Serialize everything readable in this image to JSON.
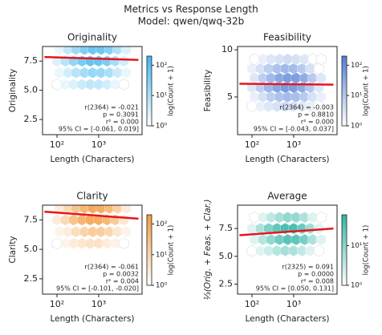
{
  "title": "Metrics vs Response Length",
  "subtitle": "Model: qwen/qwq-32b",
  "chart_data": [
    {
      "type": "hexbin",
      "title": "Originality",
      "xlabel": "Length (Characters)",
      "ylabel": "Originality",
      "colorbar_label": "log(Count + 1)",
      "color": "#3fb6ee",
      "fit_color": "#e8141c",
      "log_x": true,
      "xlim": [
        45,
        11000
      ],
      "xticks": [
        {
          "value": 100,
          "label": "10²"
        },
        {
          "value": 1000,
          "label": "10³"
        }
      ],
      "ylim": [
        1.2,
        8.75
      ],
      "yticks": [
        2.5,
        {
          "value": 5,
          "label": "5.0"
        },
        7.5
      ],
      "clim": [
        1,
        200
      ],
      "cticks": [
        {
          "value": 1,
          "label": "10⁰"
        },
        {
          "value": 10,
          "label": "10¹"
        },
        {
          "value": 100,
          "label": "10²"
        }
      ],
      "bin_x": [
        100,
        160,
        250,
        400,
        630,
        1000,
        1600,
        2500,
        4000
      ],
      "bin_y": [
        5.5,
        6.5,
        7.5,
        8.5
      ],
      "counts": [
        [
          0,
          1,
          2,
          4,
          6,
          5,
          3,
          1,
          0
        ],
        [
          1,
          3,
          8,
          15,
          22,
          20,
          12,
          4,
          1
        ],
        [
          2,
          8,
          25,
          60,
          110,
          100,
          55,
          15,
          3
        ],
        [
          1,
          5,
          18,
          45,
          90,
          85,
          40,
          10,
          2
        ]
      ],
      "fit_x": [
        50,
        9000
      ],
      "fit_values": [
        7.85,
        7.6
      ],
      "stats": [
        "r(2364) = -0.021",
        "p = 0.3091",
        "r² = 0.000",
        "95% CI = [-0.061, 0.019]"
      ]
    },
    {
      "type": "hexbin",
      "title": "Feasibility",
      "xlabel": "Length (Characters)",
      "ylabel": "Feasibility",
      "colorbar_label": "log(Count + 1)",
      "color": "#4f7fd6",
      "fit_color": "#e8141c",
      "log_x": true,
      "xlim": [
        45,
        11000
      ],
      "xticks": [
        {
          "value": 100,
          "label": "10²"
        },
        {
          "value": 1000,
          "label": "10³"
        }
      ],
      "ylim": [
        1,
        10.35
      ],
      "yticks": [
        5,
        10
      ],
      "clim": [
        1,
        200
      ],
      "cticks": [
        {
          "value": 1,
          "label": "10⁰"
        },
        {
          "value": 10,
          "label": "10¹"
        },
        {
          "value": 100,
          "label": "10²"
        }
      ],
      "bin_x": [
        100,
        160,
        250,
        400,
        630,
        1000,
        1600,
        2500,
        4000
      ],
      "bin_y": [
        4,
        5,
        6,
        7,
        8,
        9
      ],
      "counts": [
        [
          0,
          1,
          2,
          3,
          4,
          3,
          2,
          1,
          0
        ],
        [
          1,
          3,
          8,
          15,
          20,
          18,
          10,
          3,
          1
        ],
        [
          2,
          8,
          25,
          55,
          90,
          85,
          45,
          12,
          2
        ],
        [
          2,
          8,
          22,
          50,
          80,
          75,
          40,
          10,
          2
        ],
        [
          1,
          3,
          8,
          15,
          22,
          20,
          10,
          3,
          0
        ],
        [
          0,
          1,
          2,
          3,
          4,
          3,
          2,
          0,
          0
        ]
      ],
      "fit_x": [
        50,
        9000
      ],
      "fit_values": [
        6.4,
        6.3
      ],
      "stats": [
        "r(2364) = -0.003",
        "p = 0.8810",
        "r² = 0.000",
        "95% CI = [-0.043, 0.037]"
      ]
    },
    {
      "type": "hexbin",
      "title": "Clarity",
      "xlabel": "Length (Characters)",
      "ylabel": "Clarity",
      "colorbar_label": "log(Count + 1)",
      "color": "#f39a3c",
      "fit_color": "#e8141c",
      "log_x": true,
      "xlim": [
        45,
        11000
      ],
      "xticks": [
        {
          "value": 100,
          "label": "10²"
        },
        {
          "value": 1000,
          "label": "10³"
        }
      ],
      "ylim": [
        1.2,
        8.75
      ],
      "yticks": [
        2.5,
        {
          "value": 5,
          "label": "5.0"
        },
        7.5
      ],
      "clim": [
        1,
        200
      ],
      "cticks": [
        {
          "value": 1,
          "label": "10⁰"
        },
        {
          "value": 10,
          "label": "10¹"
        },
        {
          "value": 100,
          "label": "10²"
        }
      ],
      "bin_x": [
        100,
        160,
        250,
        400,
        630,
        1000,
        1600,
        2500,
        4000
      ],
      "bin_y": [
        5.5,
        6.5,
        7.5,
        8.5
      ],
      "counts": [
        [
          0,
          1,
          2,
          3,
          4,
          4,
          2,
          1,
          0
        ],
        [
          1,
          2,
          6,
          12,
          18,
          16,
          10,
          3,
          1
        ],
        [
          2,
          8,
          30,
          70,
          120,
          110,
          60,
          18,
          3
        ],
        [
          2,
          8,
          28,
          65,
          130,
          115,
          55,
          14,
          2
        ]
      ],
      "fit_x": [
        50,
        9000
      ],
      "fit_values": [
        8.2,
        7.6
      ],
      "stats": [
        "r(2364) = -0.061",
        "p = 0.0032",
        "r² = 0.004",
        "95% CI = [-0.101, -0.020]"
      ]
    },
    {
      "type": "hexbin",
      "title": "Average",
      "xlabel": "Length (Characters)",
      "ylabel": "⅓(Orig. + Feas. + Clar.)",
      "colorbar_label": "log(Count + 1)",
      "color": "#2fb5a5",
      "fit_color": "#e8141c",
      "log_x": true,
      "xlim": [
        45,
        11000
      ],
      "xticks": [
        {
          "value": 100,
          "label": "10²"
        },
        {
          "value": 1000,
          "label": "10³"
        }
      ],
      "ylim": [
        1.6,
        9.6
      ],
      "yticks": [
        2.5,
        {
          "value": 5,
          "label": "5.0"
        },
        7.5
      ],
      "clim": [
        1,
        60
      ],
      "cticks": [
        {
          "value": 1,
          "label": "10⁰"
        },
        {
          "value": 10,
          "label": "10¹"
        }
      ],
      "bin_x": [
        100,
        160,
        250,
        400,
        630,
        1000,
        1600,
        2500,
        4000
      ],
      "bin_y": [
        5.5,
        6.5,
        7.5,
        8.5
      ],
      "counts": [
        [
          0,
          1,
          2,
          4,
          6,
          5,
          3,
          1,
          0
        ],
        [
          1,
          4,
          10,
          22,
          35,
          32,
          18,
          5,
          1
        ],
        [
          1,
          5,
          15,
          30,
          50,
          48,
          25,
          7,
          1
        ],
        [
          0,
          1,
          3,
          6,
          10,
          9,
          5,
          1,
          0
        ]
      ],
      "fit_x": [
        50,
        9000
      ],
      "fit_values": [
        6.9,
        7.5
      ],
      "stats": [
        "r(2325) = 0.091",
        "p = 0.0000",
        "r² = 0.008",
        "95% CI = [0.050, 0.131]"
      ]
    }
  ]
}
